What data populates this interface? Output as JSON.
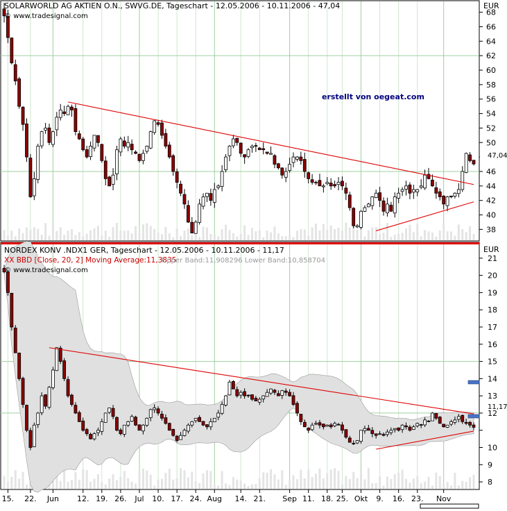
{
  "top_panel": {
    "title": "SOLARWORLD AG AKTIEN O.N., SWVG.DE, Tageschart - 12.05.2006 - 10.11.2006 - 47,04",
    "source": "www.tradesignal.com",
    "currency": "EUR",
    "watermark": "erstellt von oegeat.com",
    "last_price_label": "47,04"
  },
  "bottom_panel": {
    "title": "NORDEX KONV .NDX1 GER, Tageschart - 12.05.2006 - 10.11.2006 - 11,17",
    "indicator": "XX BBD [Close, 20, 2] Moving Average:11,3835",
    "bands": "Upper Band:11,908296 Lower Band:10,858704",
    "source": "www.tradesignal.com",
    "currency": "EUR",
    "last_price_label": "11,17"
  },
  "colors": {
    "up": "#ffffff",
    "down": "#8b0000",
    "candle_outline": "#000000",
    "trendline": "#e00000",
    "band_fill": "#e0e0e0",
    "grid": "#9fcf9f",
    "indicator_text": "#cc0000",
    "bands_text": "#9a9a9a",
    "watermark": "#000080",
    "band_marker": "#4a74c4"
  },
  "chart_data": [
    {
      "type": "candlestick",
      "title": "SOLARWORLD AG AKTIEN O.N., SWVG.DE, Tageschart - 12.05.2006 - 10.11.2006 - 47,04",
      "ylabel": "EUR",
      "ylim": [
        36.5,
        69.5
      ],
      "y_ticks": [
        38,
        40,
        42,
        44,
        46,
        48,
        50,
        52,
        54,
        56,
        58,
        60,
        62,
        64,
        66,
        68
      ],
      "last_value": 47.04,
      "x_tick_labels": [
        "15.",
        "22.",
        "Jun",
        "12.",
        "19.",
        "26.",
        "Jul",
        "10.",
        "17.",
        "24.",
        "Aug",
        "14.",
        "21.",
        "Sep",
        "11.",
        "18.",
        "25.",
        "Okt",
        "9.",
        "16.",
        "23.",
        "Nov"
      ],
      "close": [
        67.5,
        64.5,
        61.0,
        58.5,
        55.0,
        52.5,
        48.0,
        42.5,
        45.0,
        49.5,
        51.5,
        52.0,
        50.0,
        51.5,
        53.5,
        54.5,
        54.0,
        55.0,
        54.5,
        51.5,
        50.5,
        49.0,
        48.0,
        49.5,
        51.0,
        50.0,
        47.5,
        45.0,
        44.0,
        45.5,
        49.0,
        50.5,
        49.5,
        50.0,
        49.0,
        48.5,
        47.5,
        48.5,
        49.5,
        51.5,
        53.0,
        52.5,
        51.0,
        49.5,
        48.0,
        46.0,
        44.5,
        43.0,
        41.5,
        39.0,
        37.5,
        39.0,
        41.5,
        42.5,
        43.0,
        42.0,
        43.5,
        44.0,
        46.0,
        48.0,
        49.5,
        50.5,
        50.0,
        48.5,
        48.0,
        49.0,
        49.5,
        49.5,
        49.0,
        49.0,
        48.5,
        48.5,
        47.0,
        46.5,
        45.5,
        46.0,
        47.0,
        48.0,
        48.0,
        47.5,
        46.0,
        45.0,
        44.5,
        44.5,
        44.0,
        44.0,
        44.5,
        44.0,
        44.0,
        44.5,
        44.0,
        43.0,
        41.0,
        38.5,
        38.5,
        40.5,
        41.0,
        41.5,
        42.5,
        43.0,
        42.0,
        40.5,
        41.5,
        40.5,
        42.5,
        43.0,
        43.5,
        44.0,
        43.0,
        43.5,
        43.5,
        44.0,
        45.5,
        45.0,
        44.0,
        43.0,
        42.5,
        41.5,
        42.5,
        42.5,
        43.0,
        43.5,
        46.0,
        48.5,
        47.5,
        47.04
      ]
    },
    {
      "type": "candlestick",
      "title": "NORDEX KONV .NDX1 GER, Tageschart - 12.05.2006 - 10.11.2006 - 11,17",
      "ylabel": "EUR",
      "ylim": [
        7.6,
        21.8
      ],
      "y_ticks": [
        8,
        9,
        10,
        11,
        12,
        13,
        14,
        15,
        16,
        17,
        18,
        19,
        20,
        21
      ],
      "last_value": 11.17,
      "indicator": "XX BBD [Close, 20, 2] Moving Average:11,3835",
      "moving_average": 11.3835,
      "upper_band": 11.908296,
      "lower_band": 10.858704,
      "x_tick_labels": [
        "15.",
        "22.",
        "Jun",
        "12.",
        "19.",
        "26.",
        "Jul",
        "10.",
        "17.",
        "24.",
        "Aug",
        "14.",
        "21.",
        "Sep",
        "11.",
        "18.",
        "25.",
        "Okt",
        "9.",
        "16.",
        "23.",
        "Nov"
      ],
      "close": [
        20.2,
        19.0,
        17.0,
        15.5,
        14.0,
        12.5,
        11.0,
        10.0,
        11.3,
        12.0,
        13.0,
        12.4,
        13.5,
        14.5,
        15.8,
        15.0,
        14.0,
        13.0,
        12.5,
        12.0,
        11.5,
        11.0,
        10.8,
        10.5,
        10.8,
        11.0,
        11.5,
        12.0,
        12.3,
        11.8,
        11.0,
        10.8,
        11.3,
        11.5,
        11.8,
        11.3,
        11.0,
        11.3,
        11.7,
        12.2,
        12.3,
        12.0,
        11.7,
        11.4,
        11.0,
        10.7,
        10.4,
        10.7,
        11.0,
        11.3,
        11.5,
        11.7,
        11.5,
        11.3,
        11.2,
        11.5,
        11.7,
        12.0,
        12.5,
        13.0,
        13.8,
        13.4,
        13.0,
        13.2,
        13.0,
        13.0,
        12.8,
        12.7,
        12.8,
        13.0,
        13.2,
        13.4,
        13.2,
        13.0,
        13.3,
        13.2,
        13.0,
        12.5,
        12.0,
        11.5,
        11.2,
        11.0,
        11.3,
        11.4,
        11.3,
        11.2,
        11.3,
        11.2,
        11.4,
        11.3,
        11.0,
        10.6,
        10.3,
        10.2,
        10.4,
        11.0,
        11.1,
        11.0,
        10.8,
        10.7,
        10.8,
        10.7,
        10.9,
        11.0,
        11.1,
        11.0,
        11.3,
        11.2,
        11.0,
        11.2,
        11.4,
        11.3,
        11.6,
        11.5,
        12.0,
        11.7,
        11.4,
        11.2,
        11.3,
        11.5,
        11.6,
        11.8,
        11.5,
        11.4,
        11.3,
        11.17
      ]
    }
  ]
}
